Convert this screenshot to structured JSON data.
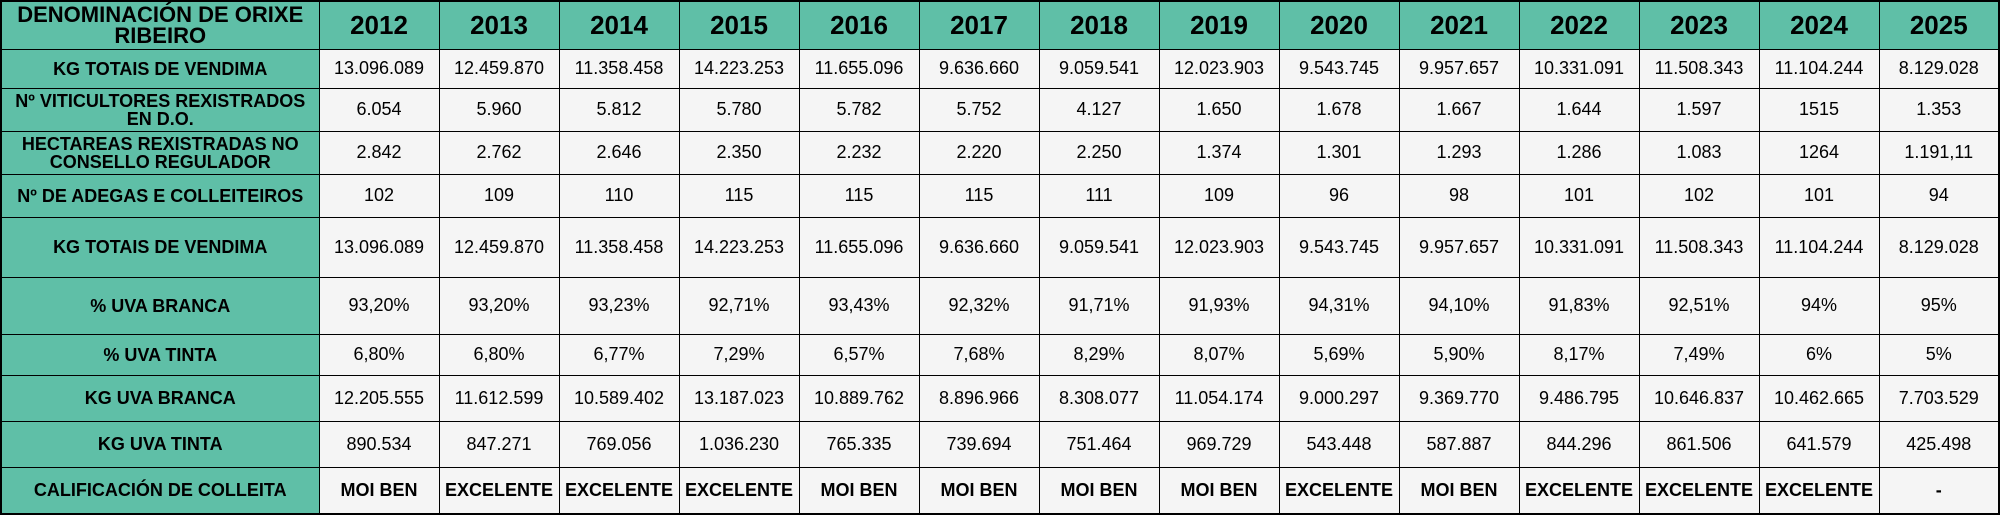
{
  "table": {
    "corner_label": "DENOMINACIÓN DE ORIXE RIBEIRO",
    "years": [
      "2012",
      "2013",
      "2014",
      "2015",
      "2016",
      "2017",
      "2018",
      "2019",
      "2020",
      "2021",
      "2022",
      "2023",
      "2024",
      "2025"
    ],
    "rows": [
      {
        "label": "KG TOTAIS DE VENDIMA",
        "values": [
          "13.096.089",
          "12.459.870",
          "11.358.458",
          "14.223.253",
          "11.655.096",
          "9.636.660",
          "9.059.541",
          "12.023.903",
          "9.543.745",
          "9.957.657",
          "10.331.091",
          "11.508.343",
          "11.104.244",
          "8.129.028"
        ]
      },
      {
        "label": "Nº VITICULTORES REXISTRADOS EN D.O.",
        "values": [
          "6.054",
          "5.960",
          "5.812",
          "5.780",
          "5.782",
          "5.752",
          "4.127",
          "1.650",
          "1.678",
          "1.667",
          "1.644",
          "1.597",
          "1515",
          "1.353"
        ]
      },
      {
        "label": "HECTAREAS REXISTRADAS NO CONSELLO REGULADOR",
        "values": [
          "2.842",
          "2.762",
          "2.646",
          "2.350",
          "2.232",
          "2.220",
          "2.250",
          "1.374",
          "1.301",
          "1.293",
          "1.286",
          "1.083",
          "1264",
          "1.191,11"
        ]
      },
      {
        "label": "Nº DE ADEGAS E COLLEITEIROS",
        "values": [
          "102",
          "109",
          "110",
          "115",
          "115",
          "115",
          "111",
          "109",
          "96",
          "98",
          "101",
          "102",
          "101",
          "94"
        ]
      },
      {
        "label": "KG TOTAIS DE VENDIMA",
        "values": [
          "13.096.089",
          "12.459.870",
          "11.358.458",
          "14.223.253",
          "11.655.096",
          "9.636.660",
          "9.059.541",
          "12.023.903",
          "9.543.745",
          "9.957.657",
          "10.331.091",
          "11.508.343",
          "11.104.244",
          "8.129.028"
        ]
      },
      {
        "label": "% UVA BRANCA",
        "values": [
          "93,20%",
          "93,20%",
          "93,23%",
          "92,71%",
          "93,43%",
          "92,32%",
          "91,71%",
          "91,93%",
          "94,31%",
          "94,10%",
          "91,83%",
          "92,51%",
          "94%",
          "95%"
        ]
      },
      {
        "label": "% UVA TINTA",
        "values": [
          "6,80%",
          "6,80%",
          "6,77%",
          "7,29%",
          "6,57%",
          "7,68%",
          "8,29%",
          "8,07%",
          "5,69%",
          "5,90%",
          "8,17%",
          "7,49%",
          "6%",
          "5%"
        ]
      },
      {
        "label": "KG UVA BRANCA",
        "values": [
          "12.205.555",
          "11.612.599",
          "10.589.402",
          "13.187.023",
          "10.889.762",
          "8.896.966",
          "8.308.077",
          "11.054.174",
          "9.000.297",
          "9.369.770",
          "9.486.795",
          "10.646.837",
          "10.462.665",
          "7.703.529"
        ]
      },
      {
        "label": "KG UVA TINTA",
        "values": [
          "890.534",
          "847.271",
          "769.056",
          "1.036.230",
          "765.335",
          "739.694",
          "751.464",
          "969.729",
          "543.448",
          "587.887",
          "844.296",
          "861.506",
          "641.579",
          "425.498"
        ]
      },
      {
        "label": "CALIFICACIÓN DE COLLEITA",
        "values": [
          "MOI BEN",
          "EXCELENTE",
          "EXCELENTE",
          "EXCELENTE",
          "MOI BEN",
          "MOI BEN",
          "MOI BEN",
          "MOI BEN",
          "EXCELENTE",
          "MOI BEN",
          "EXCELENTE",
          "EXCELENTE",
          "EXCELENTE",
          "-"
        ]
      }
    ]
  }
}
